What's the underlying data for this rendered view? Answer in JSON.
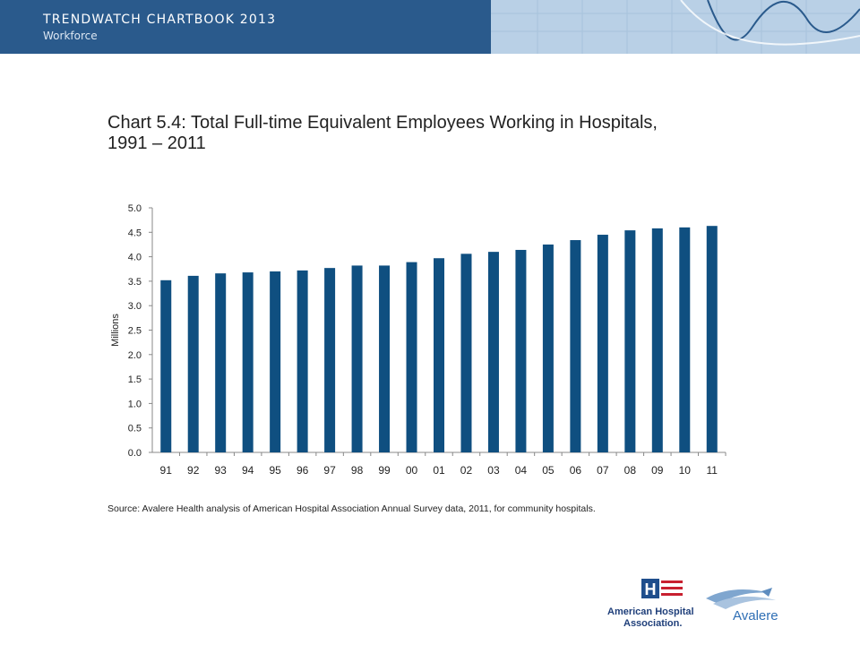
{
  "header": {
    "title": "TRENDWATCH CHARTBOOK 2013",
    "subtitle": "Workforce"
  },
  "chart_title_line1": "Chart 5.4: Total Full-time Equivalent Employees Working in Hospitals,",
  "chart_title_line2": "1991 – 2011",
  "source": "Source: Avalere Health analysis of American Hospital Association Annual Survey data, 2011, for community hospitals.",
  "logos": {
    "aha_line1": "American Hospital",
    "aha_line2": "Association.",
    "avalere": "Avalere"
  },
  "colors": {
    "banner": "#2a5a8c",
    "bar": "#0f4f80"
  },
  "chart_data": {
    "type": "bar",
    "title": "Chart 5.4: Total Full-time Equivalent Employees Working in Hospitals, 1991 – 2011",
    "xlabel": "",
    "ylabel": "Millions",
    "categories": [
      "91",
      "92",
      "93",
      "94",
      "95",
      "96",
      "97",
      "98",
      "99",
      "00",
      "01",
      "02",
      "03",
      "04",
      "05",
      "06",
      "07",
      "08",
      "09",
      "10",
      "11"
    ],
    "values": [
      3.52,
      3.61,
      3.66,
      3.68,
      3.7,
      3.72,
      3.77,
      3.82,
      3.82,
      3.89,
      3.97,
      4.06,
      4.1,
      4.14,
      4.25,
      4.34,
      4.45,
      4.54,
      4.58,
      4.6,
      4.63
    ],
    "ylim": [
      0,
      5
    ],
    "yticks": [
      "0.0",
      "0.5",
      "1.0",
      "1.5",
      "2.0",
      "2.5",
      "3.0",
      "3.5",
      "4.0",
      "4.5",
      "5.0"
    ],
    "grid": false
  }
}
